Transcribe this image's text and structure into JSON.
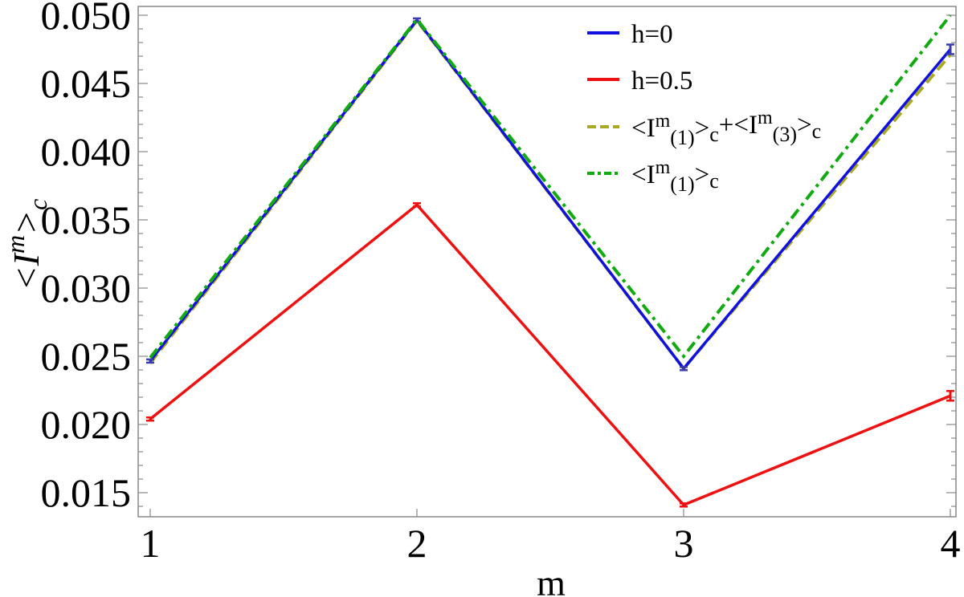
{
  "chart_data": {
    "type": "line",
    "title": "",
    "xlabel": "m",
    "ylabel": "<I^m>_c",
    "x": [
      1,
      2,
      3,
      4
    ],
    "xticks": [
      "1",
      "2",
      "3",
      "4"
    ],
    "yticks": [
      "0.015",
      "0.020",
      "0.025",
      "0.030",
      "0.035",
      "0.040",
      "0.045",
      "0.050"
    ],
    "ylim": [
      0.0135,
      0.0507
    ],
    "xlim": [
      0.95,
      4.02
    ],
    "grid": false,
    "legend_position": "upper right (inside)",
    "series": [
      {
        "name": "h=0",
        "color": "#1010e0",
        "style": "solid",
        "values": [
          0.02465,
          0.04965,
          0.0241,
          0.0475
        ],
        "error_bars": true
      },
      {
        "name": "h=0.5",
        "color": "#ee1111",
        "style": "solid",
        "values": [
          0.0204,
          0.0361,
          0.0141,
          0.0221
        ],
        "error_bars": true
      },
      {
        "name": "<I^m_(1)>_c + <I^m_(3)>_c",
        "color": "#aaaa22",
        "style": "dashed",
        "values": [
          0.0245,
          0.0496,
          0.0241,
          0.0471
        ]
      },
      {
        "name": "<I^m_(1)>_c",
        "color": "#11aa11",
        "style": "dash-dot",
        "values": [
          0.0249,
          0.0497,
          0.025,
          0.05
        ]
      }
    ]
  },
  "legend": {
    "items": [
      {
        "label": "h=0"
      },
      {
        "label": "h=0.5"
      },
      {
        "label_parts": [
          "<I",
          "m",
          "(1)",
          ">",
          "c",
          "+<I",
          "m",
          "(3)",
          ">",
          "c"
        ]
      },
      {
        "label_parts": [
          "<I",
          "m",
          "(1)",
          ">",
          "c"
        ]
      }
    ]
  },
  "axes": {
    "xlabel": "m",
    "ylabel_main": "<I",
    "ylabel_sup": "m",
    "ylabel_after": ">",
    "ylabel_sub": "c"
  }
}
